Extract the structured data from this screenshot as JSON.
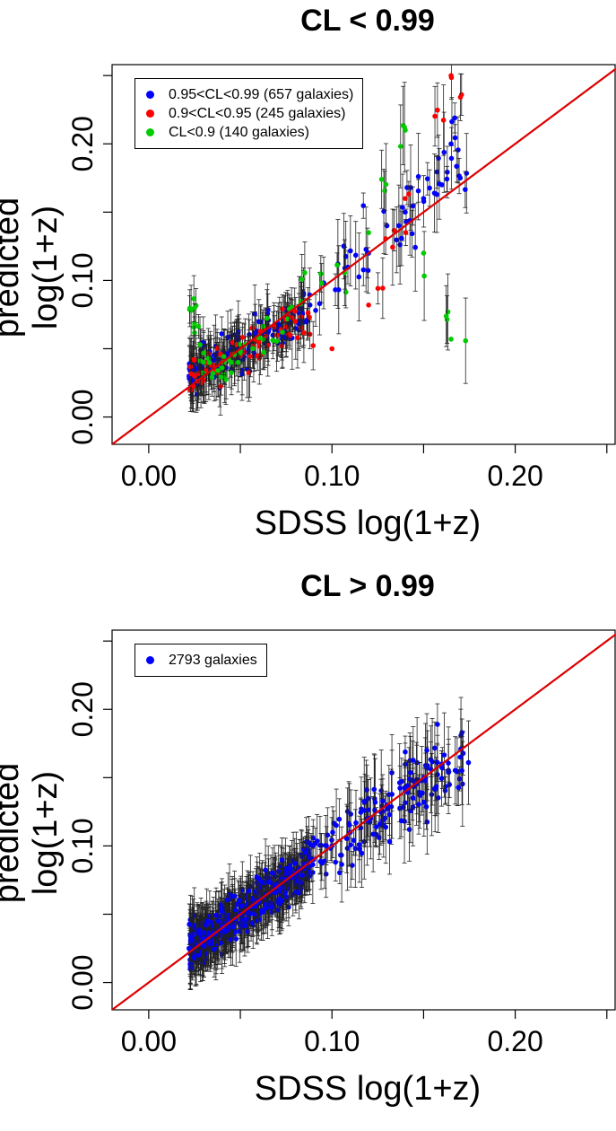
{
  "chart_data": [
    {
      "type": "scatter",
      "title": "CL < 0.99",
      "xlabel": "SDSS log(1+z)",
      "ylabel": "predicted log(1+z)",
      "xlim": [
        -0.02,
        0.255
      ],
      "ylim": [
        -0.02,
        0.258
      ],
      "xticks": [
        0.0,
        0.05,
        0.1,
        0.15,
        0.2,
        0.25
      ],
      "xtick_labels": [
        "0.00",
        "",
        "0.10",
        "",
        "0.20",
        ""
      ],
      "yticks": [
        0.0,
        0.05,
        0.1,
        0.15,
        0.2,
        0.25
      ],
      "ytick_labels": [
        "0.00",
        "",
        "0.10",
        "",
        "0.20",
        ""
      ],
      "reference_line": {
        "slope": 1,
        "intercept": 0,
        "color": "#dd0000"
      },
      "legend_position": "top-left",
      "series": [
        {
          "name": "0.95<CL<0.99 (657 galaxies)",
          "color": "#0000ff",
          "n_shown": 220,
          "x": [
            0.022,
            0.025,
            0.028,
            0.03,
            0.033,
            0.036,
            0.04,
            0.044,
            0.048,
            0.052,
            0.056,
            0.06,
            0.065,
            0.07,
            0.076,
            0.082,
            0.088,
            0.12,
            0.13,
            0.14,
            0.15,
            0.16,
            0.165,
            0.17
          ],
          "y": [
            0.03,
            0.035,
            0.028,
            0.04,
            0.036,
            0.042,
            0.038,
            0.045,
            0.05,
            0.044,
            0.055,
            0.058,
            0.062,
            0.068,
            0.072,
            0.076,
            0.082,
            0.12,
            0.14,
            0.15,
            0.16,
            0.17,
            0.2,
            0.175
          ]
        },
        {
          "name": "0.9<CL<0.95 (245 galaxies)",
          "color": "#ff0000",
          "n_shown": 80,
          "x": [
            0.025,
            0.03,
            0.035,
            0.04,
            0.05,
            0.06,
            0.07,
            0.08,
            0.1,
            0.12,
            0.14,
            0.165
          ],
          "y": [
            0.03,
            0.032,
            0.038,
            0.04,
            0.045,
            0.055,
            0.06,
            0.07,
            0.05,
            0.082,
            0.16,
            0.25
          ]
        },
        {
          "name": "CL<0.9 (140 galaxies)",
          "color": "#00cc00",
          "n_shown": 60,
          "x": [
            0.025,
            0.03,
            0.035,
            0.04,
            0.045,
            0.05,
            0.06,
            0.12,
            0.14,
            0.15,
            0.165
          ],
          "y": [
            0.08,
            0.04,
            0.032,
            0.036,
            0.04,
            0.048,
            0.058,
            0.135,
            0.21,
            0.12,
            0.057
          ]
        }
      ]
    },
    {
      "type": "scatter",
      "title": "CL > 0.99",
      "xlabel": "SDSS log(1+z)",
      "ylabel": "predicted log(1+z)",
      "xlim": [
        -0.02,
        0.255
      ],
      "ylim": [
        -0.02,
        0.258
      ],
      "xticks": [
        0.0,
        0.05,
        0.1,
        0.15,
        0.2,
        0.25
      ],
      "xtick_labels": [
        "0.00",
        "",
        "0.10",
        "",
        "0.20",
        ""
      ],
      "yticks": [
        0.0,
        0.05,
        0.1,
        0.15,
        0.2,
        0.25
      ],
      "ytick_labels": [
        "0.00",
        "",
        "0.10",
        "",
        "0.20",
        ""
      ],
      "reference_line": {
        "slope": 1,
        "intercept": 0,
        "color": "#dd0000"
      },
      "legend_position": "top-left",
      "series": [
        {
          "name": "2793 galaxies",
          "color": "#0000ff",
          "n_shown": 700,
          "x": [
            0.022,
            0.03,
            0.04,
            0.05,
            0.06,
            0.07,
            0.08,
            0.09,
            0.1,
            0.11,
            0.12,
            0.13,
            0.14,
            0.15,
            0.16,
            0.17
          ],
          "y": [
            0.025,
            0.032,
            0.04,
            0.05,
            0.06,
            0.07,
            0.08,
            0.09,
            0.1,
            0.11,
            0.12,
            0.13,
            0.14,
            0.15,
            0.16,
            0.165
          ]
        }
      ]
    }
  ]
}
